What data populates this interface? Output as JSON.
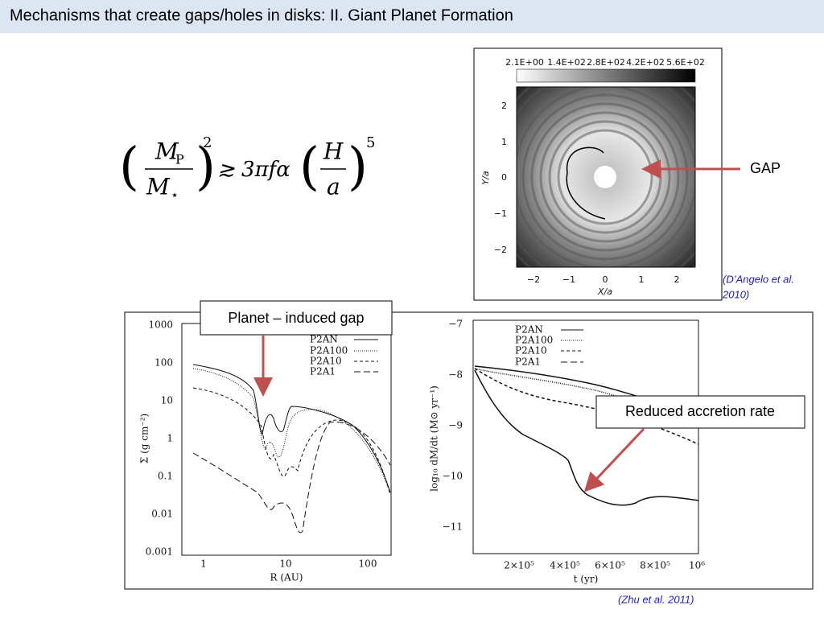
{
  "header": {
    "title": "Mechanisms that create gaps/holes in disks:  II. Giant Planet Formation"
  },
  "equation": {
    "lhs_num": "M",
    "lhs_num_sub": "P",
    "lhs_den": "M",
    "lhs_den_sub": "⋆",
    "lhs_exp": "2",
    "relation": "≳ 3πfα",
    "rhs_num": "H",
    "rhs_den": "a",
    "rhs_exp": "5"
  },
  "sim_figure": {
    "colorbar_labels": [
      "2.1E+00",
      "1.4E+02",
      "2.8E+02",
      "4.2E+02",
      "5.6E+02"
    ],
    "y_ticks": [
      "2",
      "1",
      "0",
      "−1",
      "−2"
    ],
    "x_ticks": [
      "−2",
      "−1",
      "0",
      "1",
      "2"
    ],
    "y_label": "Y/a",
    "x_label": "X/a"
  },
  "gap_callout": "GAP",
  "citation_top": [
    "(D’Angelo et al.",
    " 2010)"
  ],
  "plots": {
    "left": {
      "y_ticks": [
        "1000",
        "100",
        "10",
        "1",
        "0.1",
        "0.01",
        "0.001"
      ],
      "x_ticks": [
        "1",
        "10",
        "100"
      ],
      "x_label": "R (AU)",
      "y_label": "Σ (g cm⁻²)",
      "legend": [
        "P2AN",
        "P2A100",
        "P2A10",
        "P2A1"
      ]
    },
    "right": {
      "y_ticks": [
        "−7",
        "−8",
        "−9",
        "−10",
        "−11"
      ],
      "x_ticks": [
        "2×10⁵",
        "4×10⁵",
        "6×10⁵",
        "8×10⁵",
        "10⁶"
      ],
      "x_label": "t (yr)",
      "y_label": "log₁₀ dM/dt (M⊙ yr⁻¹)",
      "legend": [
        "P2AN",
        "P2A100",
        "P2A10",
        "P2A1"
      ]
    }
  },
  "gap_box": "Planet – induced gap",
  "accretion_box": "Reduced accretion rate",
  "citation_bottom": "(Zhu et al. 2011)"
}
